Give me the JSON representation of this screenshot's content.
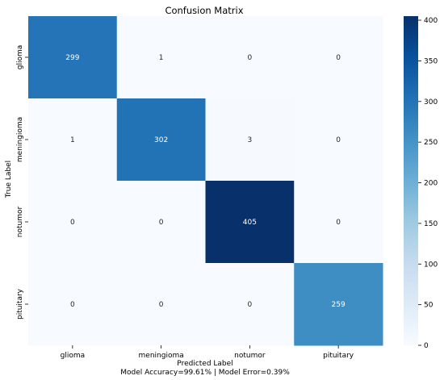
{
  "chart_data": {
    "type": "heatmap",
    "title": "Confusion Matrix",
    "xlabel": "Predicted Label",
    "ylabel": "True Label",
    "footer": "Model Accuracy=99.61% | Model Error=0.39%",
    "x_categories": [
      "glioma",
      "meningioma",
      "notumor",
      "pituitary"
    ],
    "y_categories": [
      "glioma",
      "meningioma",
      "notumor",
      "pituitary"
    ],
    "matrix": [
      [
        299,
        1,
        0,
        0
      ],
      [
        1,
        302,
        3,
        0
      ],
      [
        0,
        0,
        405,
        0
      ],
      [
        0,
        0,
        0,
        259
      ]
    ],
    "colorbar": {
      "range": [
        0,
        405
      ],
      "ticks": [
        0,
        50,
        100,
        150,
        200,
        250,
        300,
        350,
        400
      ]
    },
    "colormap": "Blues"
  }
}
